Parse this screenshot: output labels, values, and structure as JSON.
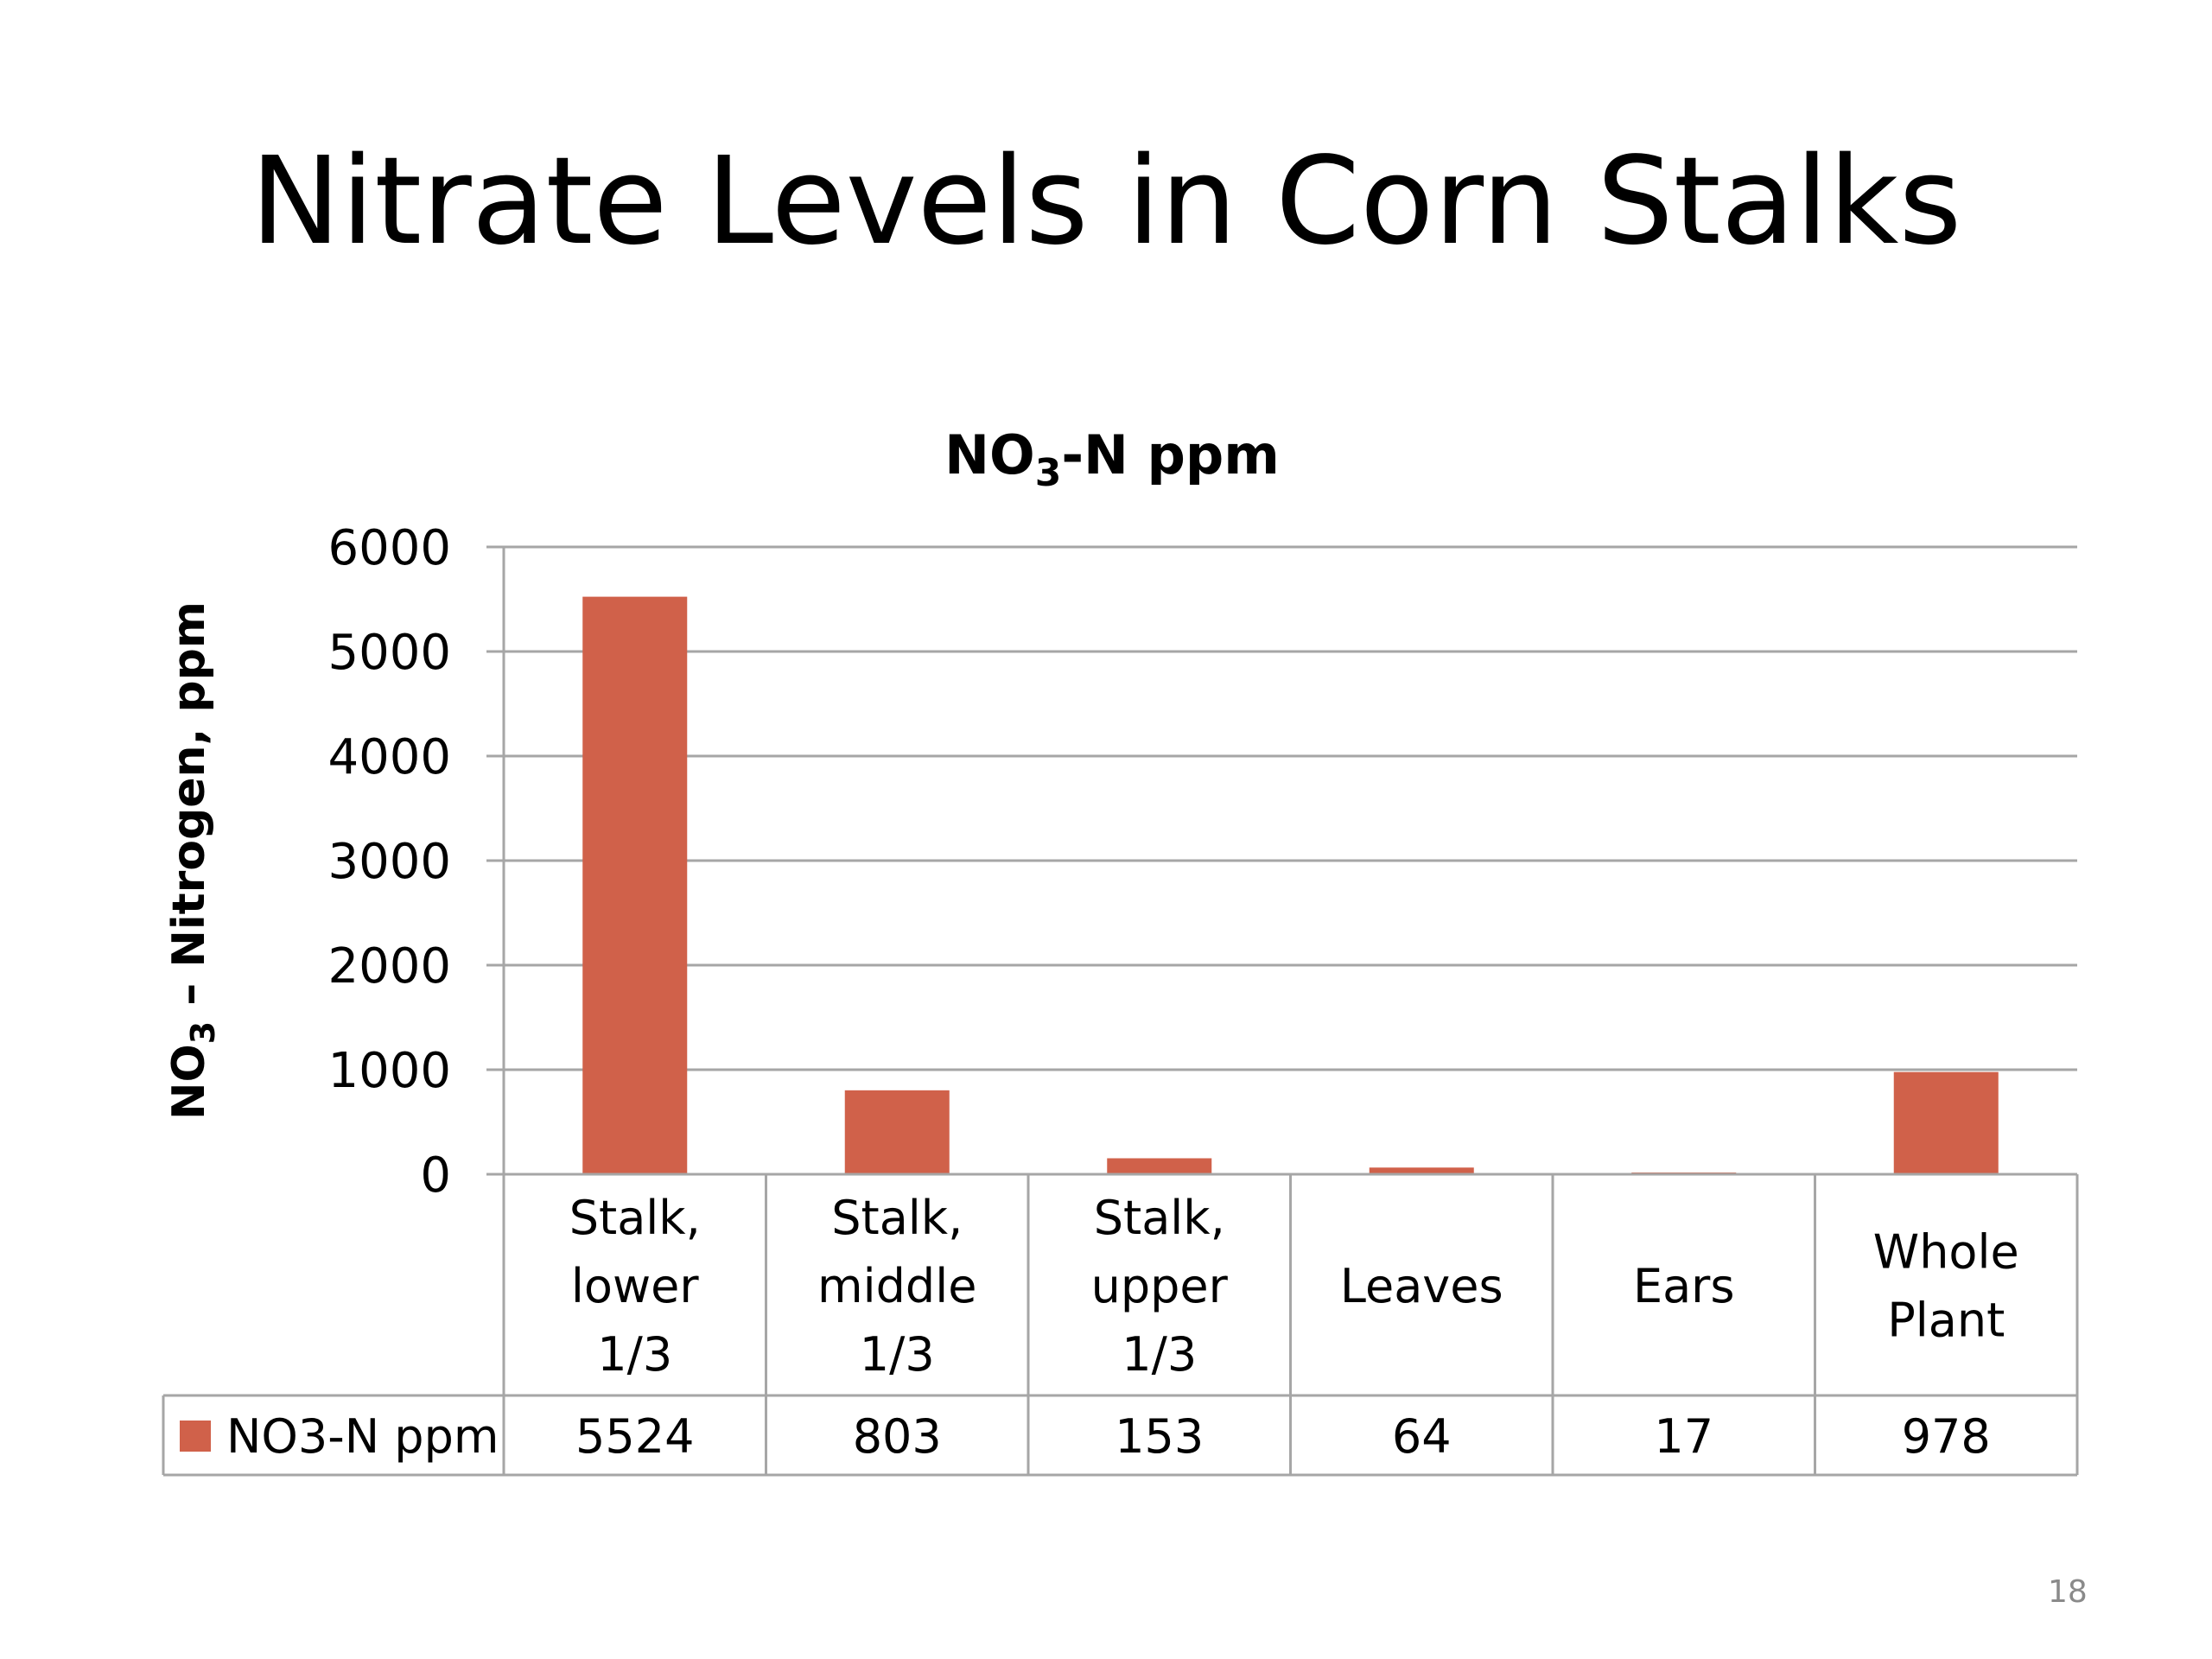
{
  "slide": {
    "title": "Nitrate Levels in Corn Stalks",
    "page_number": "18"
  },
  "chart_data": {
    "type": "bar",
    "title": "NO3-N ppm",
    "title_parts": {
      "main": "NO",
      "subscript": "3",
      "rest": "-N ppm"
    },
    "ylabel": "NO3 – Nitrogen, ppm",
    "ylabel_parts": {
      "main": "NO",
      "subscript": "3",
      "rest": " – Nitrogen, ppm"
    },
    "xlabel": "",
    "ylim": [
      0,
      6000
    ],
    "yticks": [
      0,
      1000,
      2000,
      3000,
      4000,
      5000,
      6000
    ],
    "grid": true,
    "categories": [
      [
        "Stalk,",
        "lower",
        "1/3"
      ],
      [
        "Stalk,",
        "middle",
        "1/3"
      ],
      [
        "Stalk,",
        "upper",
        "1/3"
      ],
      [
        "Leaves"
      ],
      [
        "Ears"
      ],
      [
        "Whole",
        "Plant"
      ]
    ],
    "series": [
      {
        "name": "NO3-N ppm",
        "values": [
          5524,
          803,
          153,
          64,
          17,
          978
        ],
        "color": "#D0614A"
      }
    ],
    "legend": "data-table",
    "data_table": true
  }
}
